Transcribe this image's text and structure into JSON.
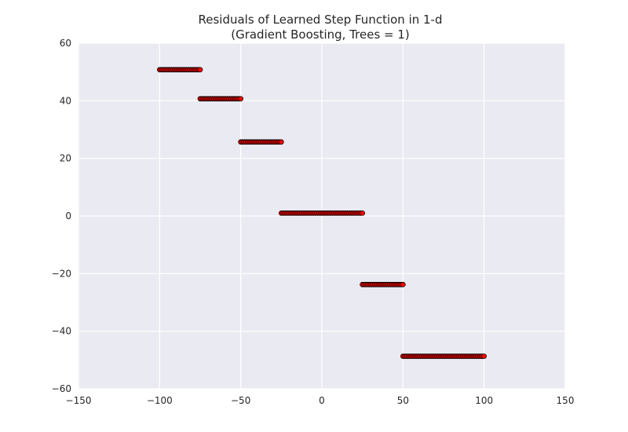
{
  "chart_data": {
    "type": "scatter",
    "title": "Residuals of Learned Step Function in 1-d",
    "subtitle": "(Gradient Boosting, Trees = 1)",
    "xlabel": "",
    "ylabel": "",
    "xlim": [
      -150,
      150
    ],
    "ylim": [
      -60,
      60
    ],
    "xticks": [
      -150,
      -100,
      -50,
      0,
      50,
      100,
      150
    ],
    "yticks": [
      -60,
      -40,
      -20,
      0,
      20,
      40,
      60
    ],
    "xtick_labels": [
      "−150",
      "−100",
      "−50",
      "0",
      "50",
      "100",
      "150"
    ],
    "ytick_labels": [
      "−60",
      "−40",
      "−20",
      "0",
      "20",
      "40",
      "60"
    ],
    "grid": true,
    "marker_color": "#ff0000",
    "marker_edge": "#000000",
    "background": "#eaeaf2",
    "segments": [
      {
        "x_start": -100,
        "x_end": -75,
        "y": 50.8
      },
      {
        "x_start": -75,
        "x_end": -50,
        "y": 40.7
      },
      {
        "x_start": -50,
        "x_end": -25,
        "y": 25.7
      },
      {
        "x_start": -25,
        "x_end": 25,
        "y": 1.0
      },
      {
        "x_start": 25,
        "x_end": 50,
        "y": -23.8
      },
      {
        "x_start": 50,
        "x_end": 100,
        "y": -48.7
      }
    ]
  }
}
